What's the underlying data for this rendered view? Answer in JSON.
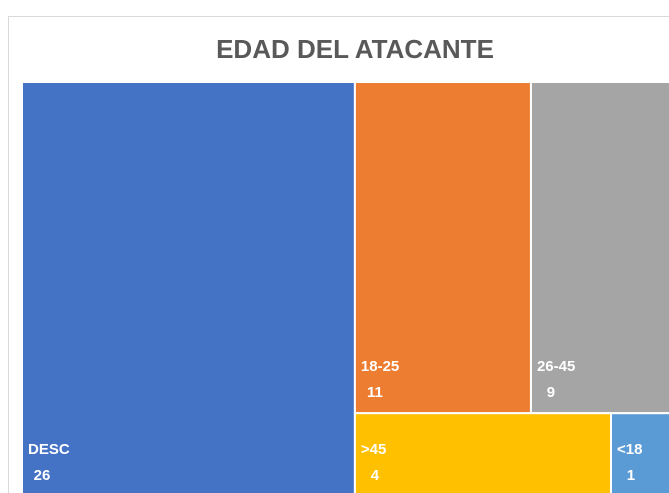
{
  "chart_data": {
    "type": "treemap",
    "title": "EDAD DEL ATACANTE",
    "categories": [
      "DESC",
      "18-25",
      "26-45",
      ">45",
      "<18"
    ],
    "values": [
      26,
      11,
      9,
      4,
      1
    ],
    "colors": [
      "#4472c4",
      "#ed7d31",
      "#a5a5a5",
      "#ffc000",
      "#5b9bd5"
    ]
  }
}
